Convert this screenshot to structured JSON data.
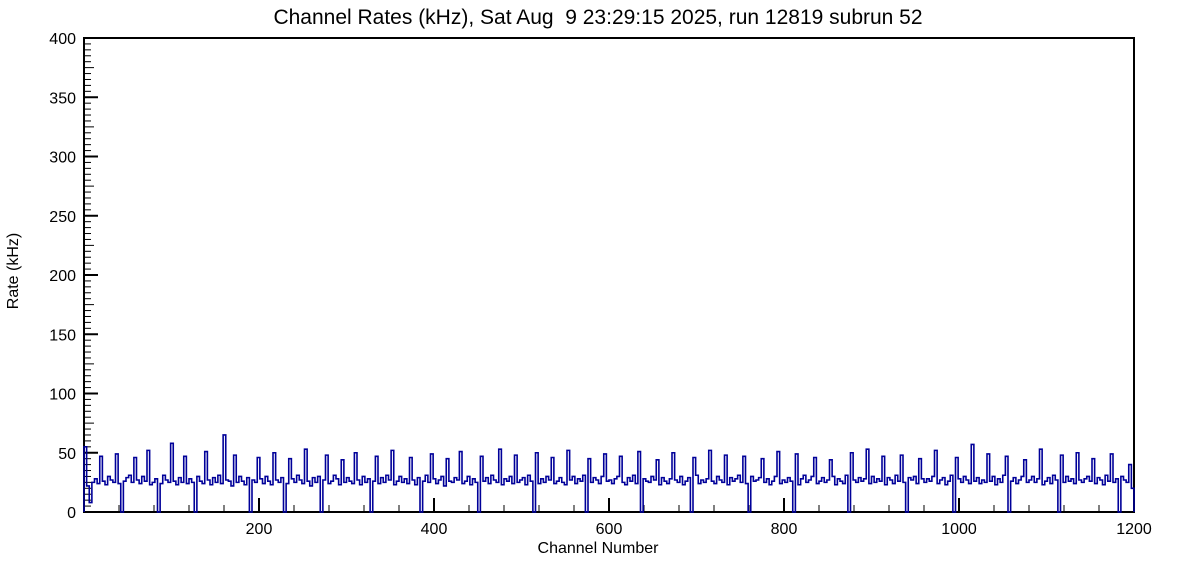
{
  "chart_data": {
    "type": "line",
    "title": "Channel Rates (kHz), Sat Aug  9 23:29:15 2025, run 12819 subrun 52",
    "xlabel": "Channel Number",
    "ylabel": "Rate (kHz)",
    "xlim": [
      0,
      1200
    ],
    "ylim": [
      0,
      400
    ],
    "x_ticks": [
      200,
      400,
      600,
      800,
      1000,
      1200
    ],
    "y_ticks": [
      0,
      50,
      100,
      150,
      200,
      250,
      300,
      350,
      400
    ],
    "x_minor_step": 40,
    "y_minor_step": 5,
    "line_color": "#000099",
    "bin_width_channels": 3,
    "values": [
      55,
      22,
      8,
      25,
      28,
      24,
      47,
      26,
      23,
      30,
      27,
      25,
      49,
      24,
      0,
      26,
      29,
      31,
      25,
      46,
      27,
      24,
      30,
      26,
      52,
      23,
      25,
      28,
      0,
      24,
      31,
      27,
      25,
      58,
      26,
      23,
      29,
      25,
      47,
      24,
      28,
      25,
      0,
      30,
      26,
      24,
      51,
      27,
      23,
      29,
      25,
      31,
      24,
      65,
      27,
      26,
      22,
      48,
      25,
      30,
      26,
      23,
      29,
      0,
      27,
      25,
      46,
      28,
      24,
      30,
      26,
      23,
      50,
      27,
      25,
      29,
      0,
      24,
      45,
      28,
      25,
      31,
      27,
      24,
      53,
      26,
      22,
      29,
      25,
      30,
      0,
      27,
      48,
      24,
      26,
      31,
      28,
      23,
      44,
      25,
      29,
      26,
      24,
      50,
      27,
      23,
      30,
      25,
      28,
      0,
      26,
      47,
      24,
      29,
      25,
      31,
      27,
      52,
      23,
      26,
      30,
      25,
      28,
      24,
      46,
      27,
      23,
      29,
      0,
      26,
      31,
      25,
      49,
      28,
      24,
      27,
      30,
      22,
      45,
      26,
      25,
      29,
      27,
      51,
      24,
      26,
      30,
      23,
      28,
      25,
      0,
      47,
      26,
      29,
      24,
      31,
      27,
      25,
      53,
      23,
      28,
      26,
      30,
      24,
      48,
      25,
      27,
      29,
      23,
      31,
      26,
      0,
      50,
      24,
      28,
      25,
      30,
      27,
      46,
      24,
      26,
      29,
      25,
      23,
      52,
      27,
      30,
      24,
      28,
      26,
      31,
      0,
      45,
      25,
      29,
      27,
      24,
      30,
      49,
      26,
      27,
      24,
      28,
      30,
      47,
      25,
      23,
      29,
      26,
      31,
      24,
      51,
      0,
      28,
      26,
      25,
      30,
      27,
      44,
      23,
      29,
      26,
      24,
      28,
      50,
      27,
      25,
      30,
      23,
      26,
      29,
      0,
      46,
      31,
      24,
      27,
      25,
      28,
      52,
      26,
      24,
      30,
      27,
      25,
      48,
      23,
      29,
      26,
      28,
      31,
      25,
      47,
      24,
      0,
      30,
      26,
      27,
      29,
      45,
      25,
      28,
      23,
      26,
      30,
      51,
      24,
      27,
      25,
      29,
      26,
      0,
      49,
      23,
      28,
      31,
      25,
      27,
      30,
      46,
      24,
      26,
      29,
      25,
      27,
      44,
      30,
      23,
      28,
      26,
      24,
      31,
      0,
      50,
      27,
      25,
      29,
      26,
      28,
      53,
      24,
      30,
      25,
      28,
      26,
      47,
      23,
      29,
      27,
      24,
      31,
      26,
      48,
      25,
      0,
      29,
      27,
      30,
      24,
      45,
      28,
      25,
      28,
      26,
      30,
      52,
      24,
      27,
      29,
      23,
      26,
      31,
      0,
      46,
      28,
      25,
      30,
      27,
      24,
      57,
      26,
      29,
      24,
      27,
      25,
      49,
      26,
      30,
      23,
      28,
      25,
      31,
      47,
      0,
      26,
      29,
      24,
      27,
      30,
      44,
      25,
      27,
      30,
      25,
      28,
      53,
      23,
      26,
      29,
      24,
      31,
      27,
      0,
      48,
      25,
      30,
      26,
      28,
      24,
      50,
      27,
      25,
      28,
      30,
      26,
      45,
      24,
      29,
      27,
      23,
      31,
      26,
      49,
      25,
      28,
      0,
      30,
      27,
      25,
      40,
      20
    ]
  }
}
